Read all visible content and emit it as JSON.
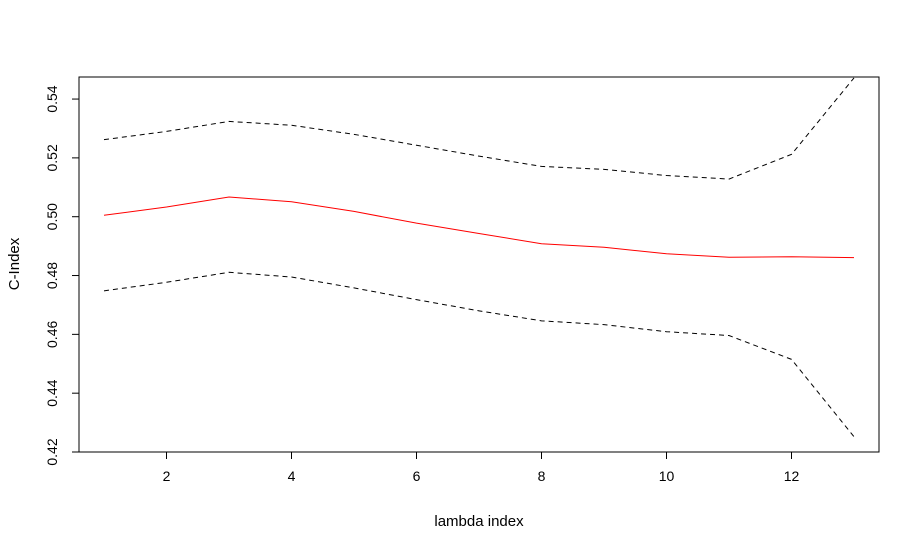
{
  "chart_data": {
    "type": "line",
    "title": "",
    "xlabel": "lambda index",
    "ylabel": "C-Index",
    "xlim": [
      0.6,
      13.4
    ],
    "ylim": [
      0.42,
      0.5475
    ],
    "xticks": [
      2,
      4,
      6,
      8,
      10,
      12
    ],
    "xtick_labels": [
      "2",
      "4",
      "6",
      "8",
      "10",
      "12"
    ],
    "yticks": [
      0.42,
      0.44,
      0.46,
      0.48,
      0.5,
      0.52,
      0.54
    ],
    "ytick_labels": [
      "0.42",
      "0.44",
      "0.46",
      "0.48",
      "0.50",
      "0.52",
      "0.54"
    ],
    "grid": false,
    "x": [
      1,
      2,
      3,
      4,
      5,
      6,
      7,
      8,
      9,
      10,
      11,
      12,
      13
    ],
    "series": [
      {
        "style": "solid",
        "color": "#ff0000",
        "values": [
          0.5005,
          0.5033,
          0.5067,
          0.5051,
          0.5018,
          0.4978,
          0.4943,
          0.4908,
          0.4896,
          0.4874,
          0.4862,
          0.4864,
          0.4861
        ]
      },
      {
        "style": "dashed",
        "color": "#000000",
        "values": [
          0.5262,
          0.529,
          0.5324,
          0.5311,
          0.528,
          0.5243,
          0.5206,
          0.5171,
          0.5161,
          0.514,
          0.5128,
          0.5212,
          0.5472
        ]
      },
      {
        "style": "dashed",
        "color": "#000000",
        "values": [
          0.4748,
          0.4777,
          0.4811,
          0.4795,
          0.4758,
          0.4718,
          0.468,
          0.4646,
          0.4633,
          0.4609,
          0.4596,
          0.4515,
          0.4252
        ]
      }
    ]
  }
}
